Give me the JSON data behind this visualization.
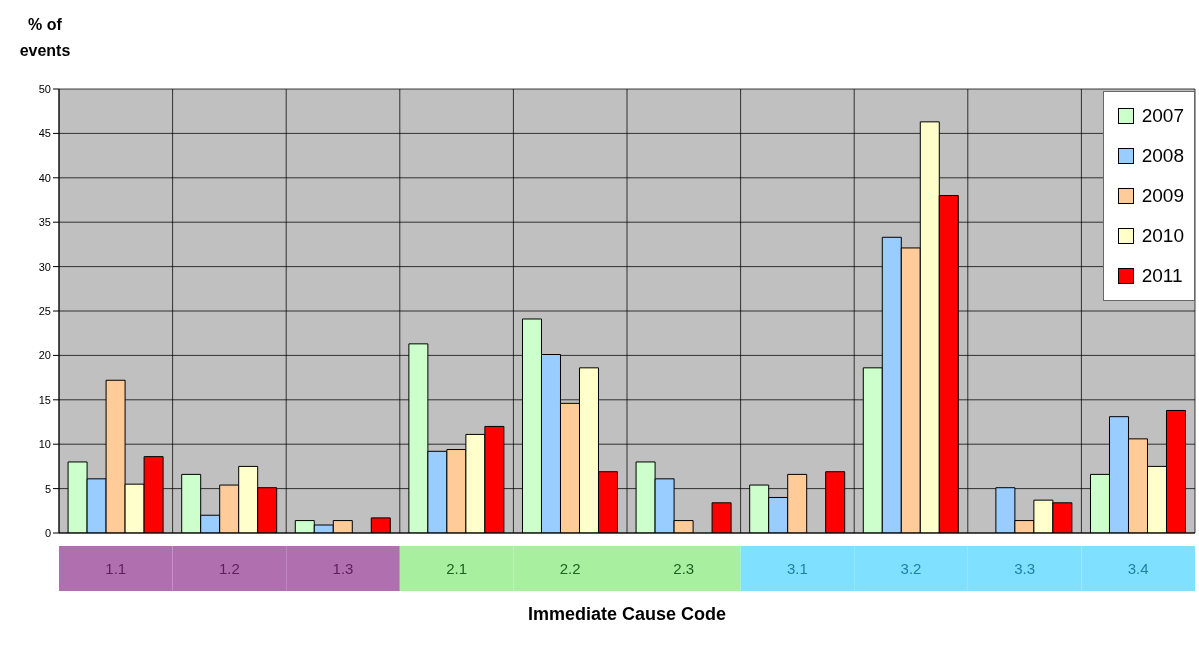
{
  "chart_data": {
    "type": "bar",
    "xlabel": "Immediate Cause Code",
    "ylabel": "% of events",
    "categories": [
      "1.1",
      "1.2",
      "1.3",
      "2.1",
      "2.2",
      "2.3",
      "3.1",
      "3.2",
      "3.3",
      "3.4"
    ],
    "series": [
      {
        "name": "2007",
        "color": "#ccffcc",
        "values": [
          8.0,
          6.6,
          1.4,
          21.3,
          24.1,
          8.0,
          5.4,
          18.6,
          0,
          6.6
        ]
      },
      {
        "name": "2008",
        "color": "#99ccff",
        "values": [
          6.1,
          2.0,
          0.9,
          9.2,
          20.1,
          6.1,
          4.0,
          33.3,
          5.1,
          13.1
        ]
      },
      {
        "name": "2009",
        "color": "#ffcc99",
        "values": [
          17.2,
          5.4,
          1.4,
          9.4,
          14.6,
          1.4,
          6.6,
          32.1,
          1.4,
          10.6
        ]
      },
      {
        "name": "2010",
        "color": "#ffffcc",
        "values": [
          5.5,
          7.5,
          0,
          11.1,
          18.6,
          0,
          0,
          46.3,
          3.7,
          7.5
        ]
      },
      {
        "name": "2011",
        "color": "#ff0000",
        "values": [
          8.6,
          5.1,
          1.7,
          12.0,
          6.9,
          3.4,
          6.9,
          38.0,
          3.4,
          13.8
        ]
      }
    ],
    "ylim": [
      0,
      50
    ],
    "yticks": [
      0,
      5,
      10,
      15,
      20,
      25,
      30,
      35,
      40,
      45,
      50
    ],
    "grid": true,
    "legend": "top right"
  }
}
